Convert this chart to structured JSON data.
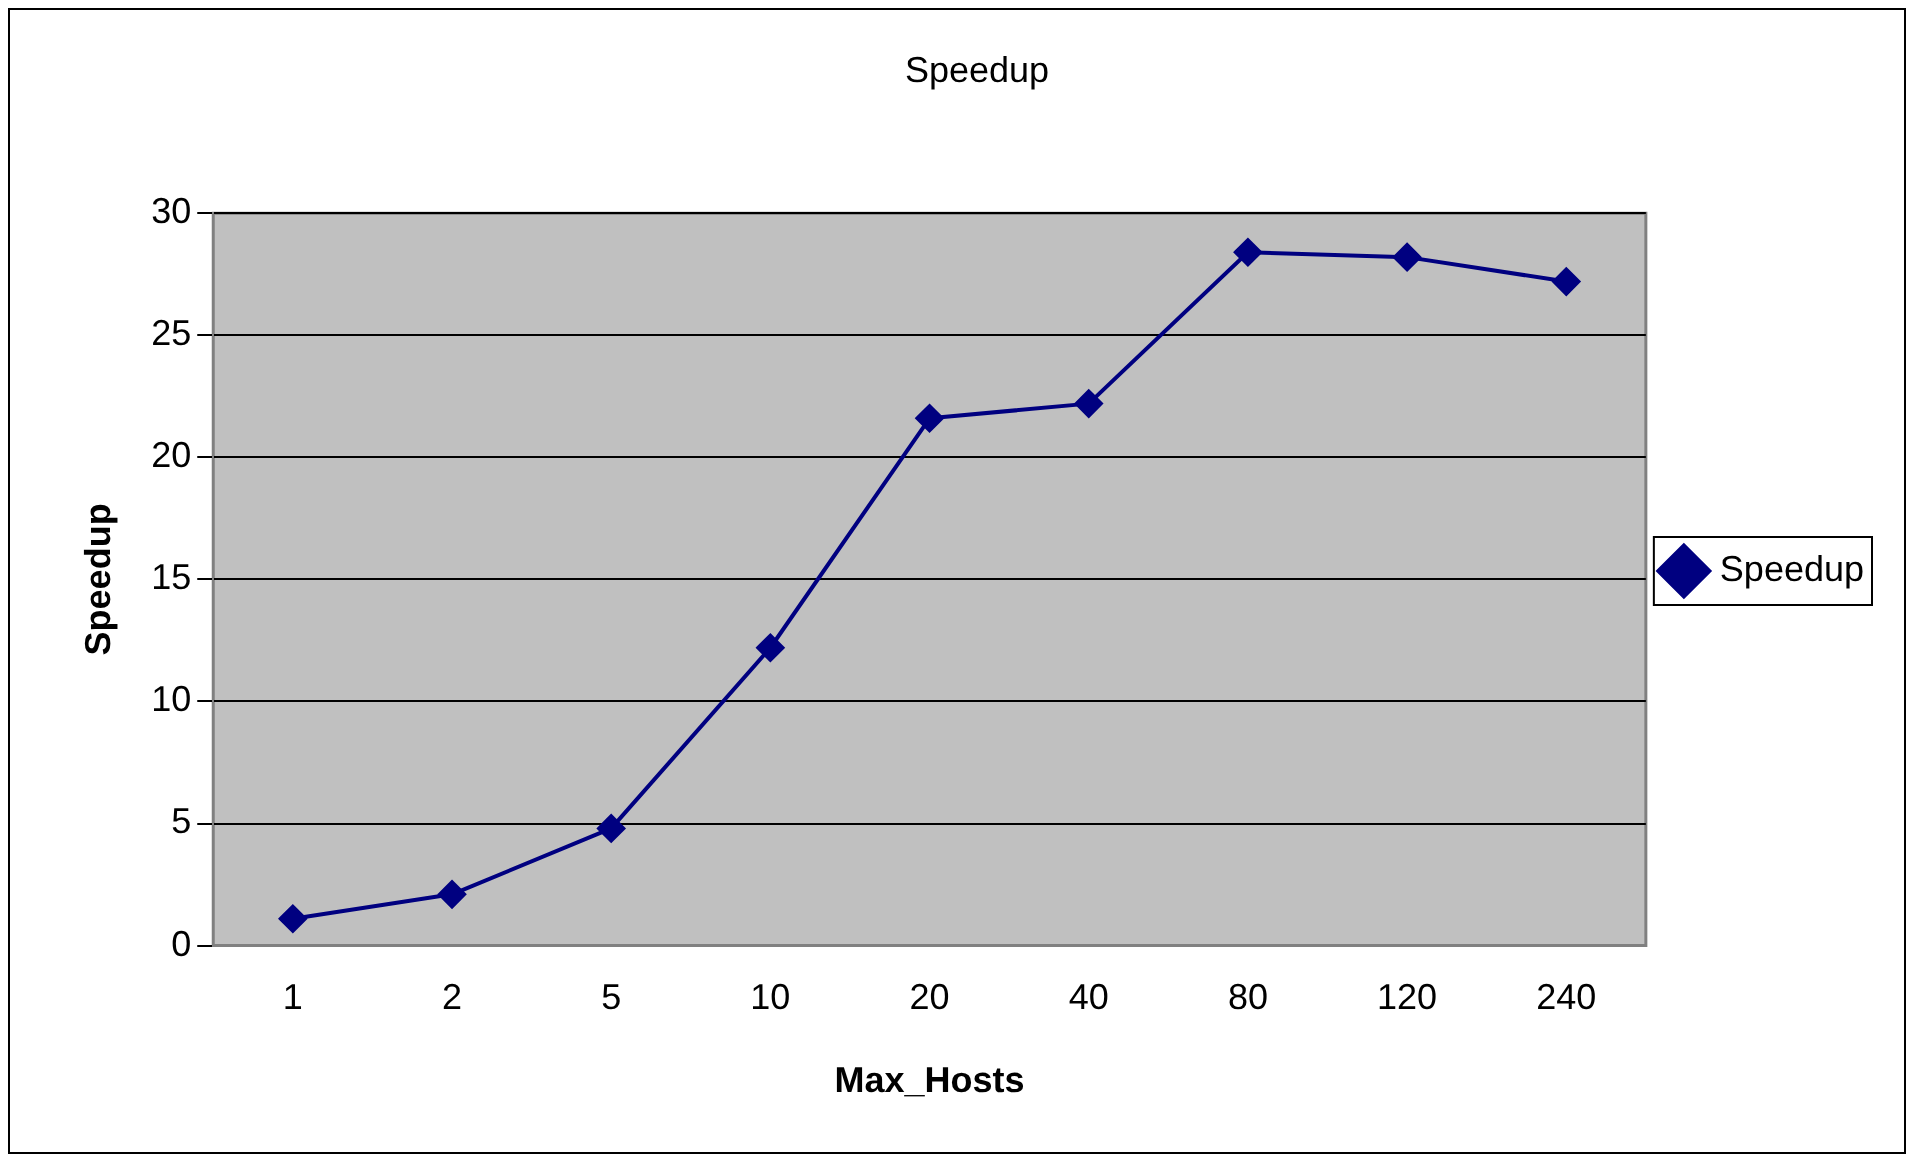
{
  "chart_data": {
    "type": "line",
    "title": "Speedup",
    "xlabel": "Max_Hosts",
    "ylabel": "Speedup",
    "categories": [
      "1",
      "2",
      "5",
      "10",
      "20",
      "40",
      "80",
      "120",
      "240"
    ],
    "series": [
      {
        "name": "Speedup",
        "color": "#000080",
        "values": [
          1.1,
          2.1,
          4.8,
          12.2,
          21.6,
          22.2,
          28.4,
          28.2,
          27.2
        ]
      }
    ],
    "ylim": [
      0,
      30
    ],
    "yticks": [
      0,
      5,
      10,
      15,
      20,
      25,
      30
    ],
    "grid": "y",
    "legend": "right",
    "marker": "diamond",
    "line_style": "solid"
  }
}
